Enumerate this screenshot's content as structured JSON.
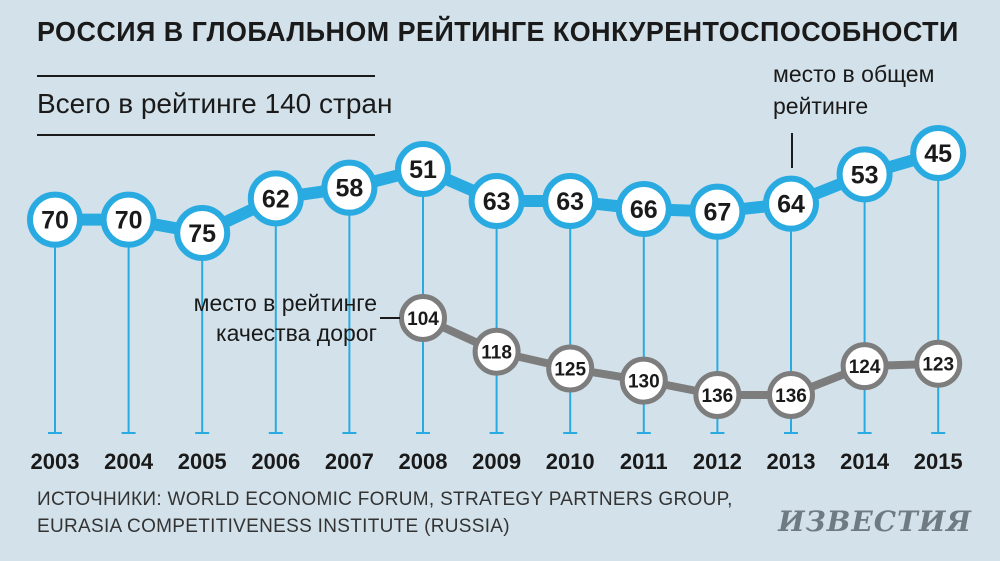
{
  "title": "РОССИЯ В ГЛОБАЛЬНОМ РЕЙТИНГЕ КОНКУРЕНТОСПОСОБНОСТИ",
  "subtitle": "Всего в рейтинге 140 стран",
  "sources": {
    "line1": "ИСТОЧНИКИ: WORLD ECONOMIC FORUM, STRATEGY PARTNERS GROUP,",
    "line2": "EURASIA COMPETITIVENESS INSTITUTE (RUSSIA)"
  },
  "logo": "ИЗВЕСТИЯ",
  "colors": {
    "background": "#d3e2ea",
    "overall": "#29abe2",
    "roads": "#7d7d7d",
    "text": "#1a1a1a"
  },
  "chart_data": {
    "type": "line",
    "title": "РОССИЯ В ГЛОБАЛЬНОМ РЕЙТИНГЕ КОНКУРЕНТОСПОСОБНОСТИ",
    "x": [
      "2003",
      "2004",
      "2005",
      "2006",
      "2007",
      "2008",
      "2009",
      "2010",
      "2011",
      "2012",
      "2013",
      "2014",
      "2015"
    ],
    "series": [
      {
        "name": "overall",
        "label": [
          "место в общем",
          "рейтинге"
        ],
        "values": [
          70,
          70,
          75,
          62,
          58,
          51,
          63,
          63,
          66,
          67,
          64,
          53,
          45
        ]
      },
      {
        "name": "roads",
        "label": [
          "место в рейтинге",
          "качества дорог"
        ],
        "values": [
          null,
          null,
          null,
          null,
          null,
          104,
          118,
          125,
          130,
          136,
          136,
          124,
          123
        ]
      }
    ]
  }
}
